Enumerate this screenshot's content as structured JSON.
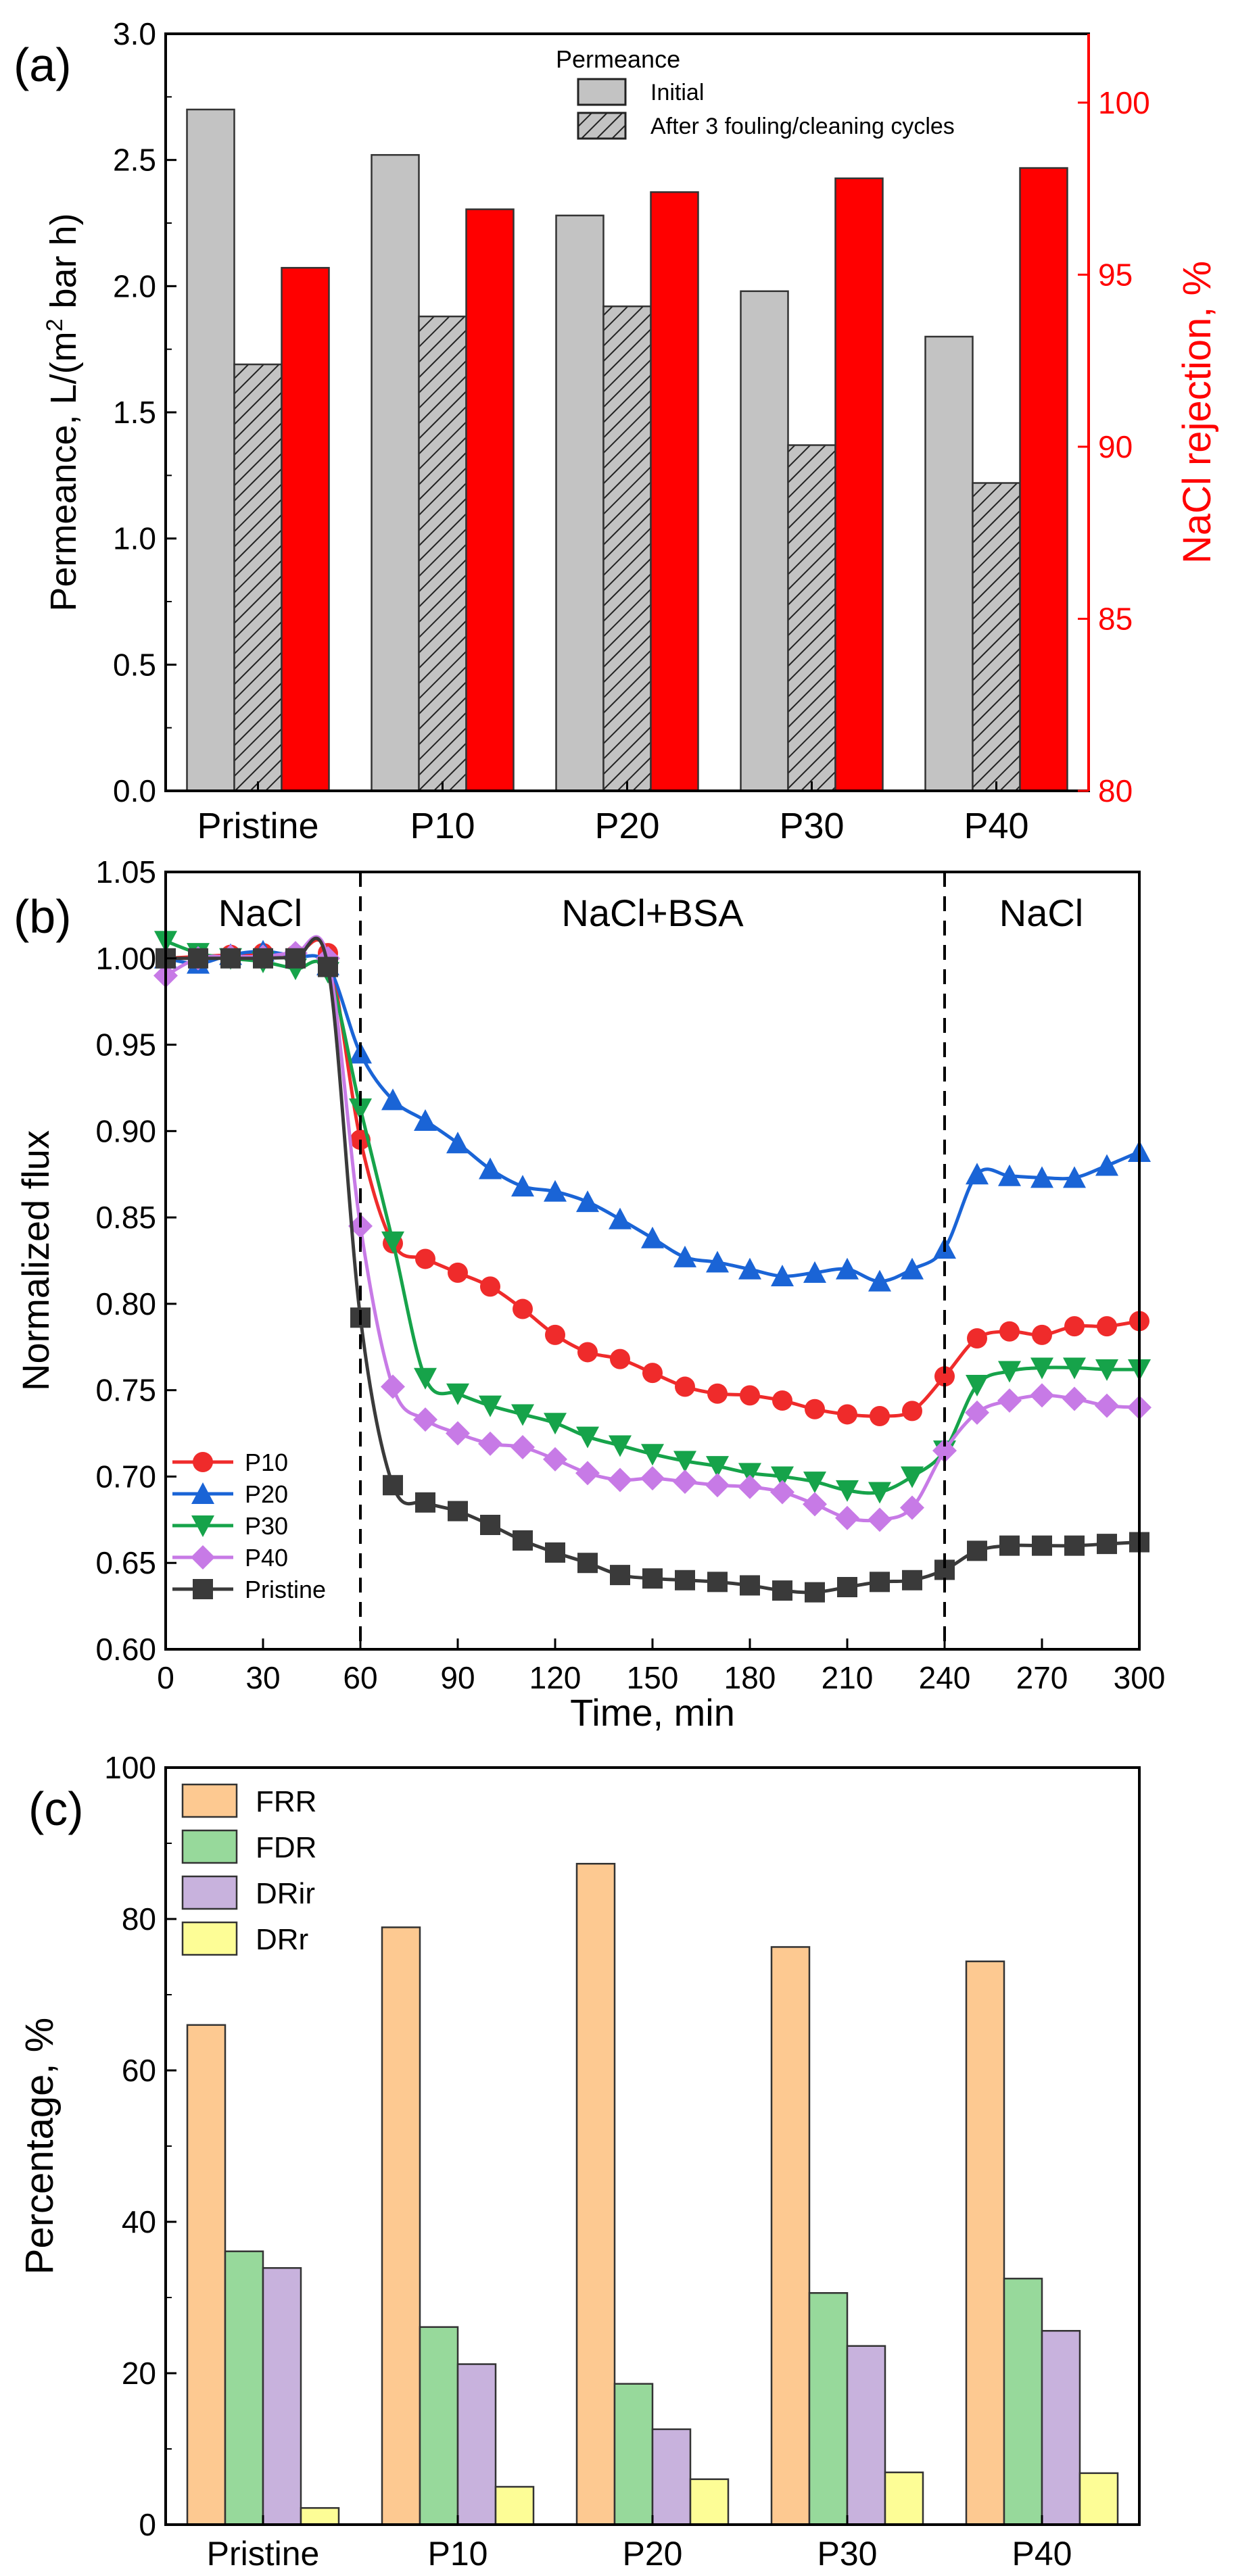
{
  "figure_labels": {
    "a": "(a)",
    "b": "(b)",
    "c": "(c)"
  },
  "colors": {
    "initial": "#c3c3c3",
    "after": "#c3c3c3",
    "rejection": "#ff0000",
    "axis_right": "#ff0000",
    "P10": "#ef2b2b",
    "P20": "#1a64d6",
    "P30": "#16a34a",
    "P40": "#c77ae6",
    "Pristine": "#3a3a3a",
    "FRR": "#fdc991",
    "FDR": "#97d99b",
    "DRir": "#c8b2dd",
    "DRr": "#fdfd96"
  },
  "chart_data": [
    {
      "id": "a",
      "type": "bar",
      "categories": [
        "Pristine",
        "P10",
        "P20",
        "P30",
        "P40"
      ],
      "series": [
        {
          "name": "Initial",
          "axis": "left",
          "values": [
            2.7,
            2.52,
            2.28,
            1.98,
            1.8
          ]
        },
        {
          "name": "After 3 fouling/cleaning cycles",
          "axis": "left",
          "hatch": true,
          "values": [
            1.69,
            1.88,
            1.92,
            1.37,
            1.22
          ]
        },
        {
          "name": "NaCl rejection",
          "axis": "right",
          "values": [
            95.2,
            96.9,
            97.4,
            97.8,
            98.1
          ]
        }
      ],
      "legend_title": "Permeance",
      "ylabel": "Permeance, L/(m",
      "ylabel_sup": "2",
      "ylabel_end": " bar h)",
      "y2label": "NaCl rejection, %",
      "ylim": [
        0.0,
        3.0
      ],
      "yticks": [
        "0.0",
        "0.5",
        "1.0",
        "1.5",
        "2.0",
        "2.5",
        "3.0"
      ],
      "y2lim": [
        80,
        102
      ],
      "y2ticks": [
        "80",
        "85",
        "90",
        "95",
        "100"
      ]
    },
    {
      "id": "b",
      "type": "line",
      "xlabel": "Time, min",
      "ylabel": "Normalized flux",
      "xlim": [
        0,
        300
      ],
      "ylim": [
        0.6,
        1.05
      ],
      "xticks": [
        "0",
        "30",
        "60",
        "90",
        "120",
        "150",
        "180",
        "210",
        "240",
        "270",
        "300"
      ],
      "yticks": [
        "0.60",
        "0.65",
        "0.70",
        "0.75",
        "0.80",
        "0.85",
        "0.90",
        "0.95",
        "1.00",
        "1.05"
      ],
      "phase_lines": [
        60,
        240
      ],
      "phase_labels": [
        "NaCl",
        "NaCl+BSA",
        "NaCl"
      ],
      "x": [
        0,
        10,
        20,
        30,
        40,
        50,
        60,
        70,
        80,
        90,
        100,
        110,
        120,
        130,
        140,
        150,
        160,
        170,
        180,
        190,
        200,
        210,
        220,
        230,
        240,
        250,
        260,
        270,
        280,
        290,
        300
      ],
      "series": [
        {
          "name": "P10",
          "marker": "circle",
          "values": [
            1.0,
            1.001,
            1.002,
            1.003,
            1.002,
            1.003,
            0.895,
            0.835,
            0.826,
            0.818,
            0.81,
            0.797,
            0.782,
            0.772,
            0.768,
            0.76,
            0.752,
            0.748,
            0.747,
            0.744,
            0.739,
            0.736,
            0.735,
            0.738,
            0.758,
            0.78,
            0.784,
            0.782,
            0.787,
            0.787,
            0.79
          ]
        },
        {
          "name": "P20",
          "marker": "triangle-up",
          "values": [
            1.0,
            0.997,
            1.002,
            1.004,
            1.001,
            0.996,
            0.945,
            0.918,
            0.906,
            0.893,
            0.878,
            0.868,
            0.865,
            0.859,
            0.849,
            0.838,
            0.827,
            0.824,
            0.82,
            0.816,
            0.818,
            0.82,
            0.813,
            0.82,
            0.832,
            0.875,
            0.874,
            0.873,
            0.873,
            0.88,
            0.888
          ]
        },
        {
          "name": "P30",
          "marker": "triangle-down",
          "values": [
            1.01,
            1.003,
            1.0,
            0.998,
            0.994,
            0.992,
            0.913,
            0.836,
            0.757,
            0.748,
            0.741,
            0.736,
            0.731,
            0.723,
            0.718,
            0.713,
            0.709,
            0.706,
            0.702,
            0.7,
            0.697,
            0.692,
            0.691,
            0.7,
            0.715,
            0.753,
            0.761,
            0.763,
            0.763,
            0.762,
            0.762
          ]
        },
        {
          "name": "P40",
          "marker": "diamond",
          "values": [
            0.99,
            1.0,
            1.001,
            1.001,
            1.003,
            1.0,
            0.845,
            0.752,
            0.733,
            0.725,
            0.719,
            0.717,
            0.71,
            0.702,
            0.698,
            0.699,
            0.697,
            0.695,
            0.694,
            0.691,
            0.684,
            0.676,
            0.675,
            0.682,
            0.715,
            0.737,
            0.744,
            0.747,
            0.745,
            0.741,
            0.74
          ]
        },
        {
          "name": "Pristine",
          "marker": "square",
          "values": [
            1.0,
            1.0,
            1.0,
            1.0,
            1.0,
            0.995,
            0.792,
            0.695,
            0.685,
            0.68,
            0.672,
            0.663,
            0.656,
            0.65,
            0.643,
            0.641,
            0.64,
            0.639,
            0.637,
            0.634,
            0.633,
            0.636,
            0.639,
            0.64,
            0.646,
            0.657,
            0.66,
            0.66,
            0.66,
            0.661,
            0.662
          ]
        }
      ]
    },
    {
      "id": "c",
      "type": "bar",
      "categories": [
        "Pristine",
        "P10",
        "P20",
        "P30",
        "P40"
      ],
      "series": [
        {
          "name": "FRR",
          "values": [
            66.0,
            78.9,
            87.3,
            76.3,
            74.4
          ]
        },
        {
          "name": "FDR",
          "values": [
            36.1,
            26.1,
            18.6,
            30.6,
            32.5
          ]
        },
        {
          "name": "DRir",
          "values": [
            33.9,
            21.2,
            12.6,
            23.6,
            25.6
          ]
        },
        {
          "name": "DRr",
          "values": [
            2.2,
            5.0,
            6.0,
            6.9,
            6.8
          ]
        }
      ],
      "ylabel": "Percentage, %",
      "ylim": [
        0,
        100
      ],
      "yticks": [
        "0",
        "20",
        "40",
        "60",
        "80",
        "100"
      ]
    }
  ]
}
